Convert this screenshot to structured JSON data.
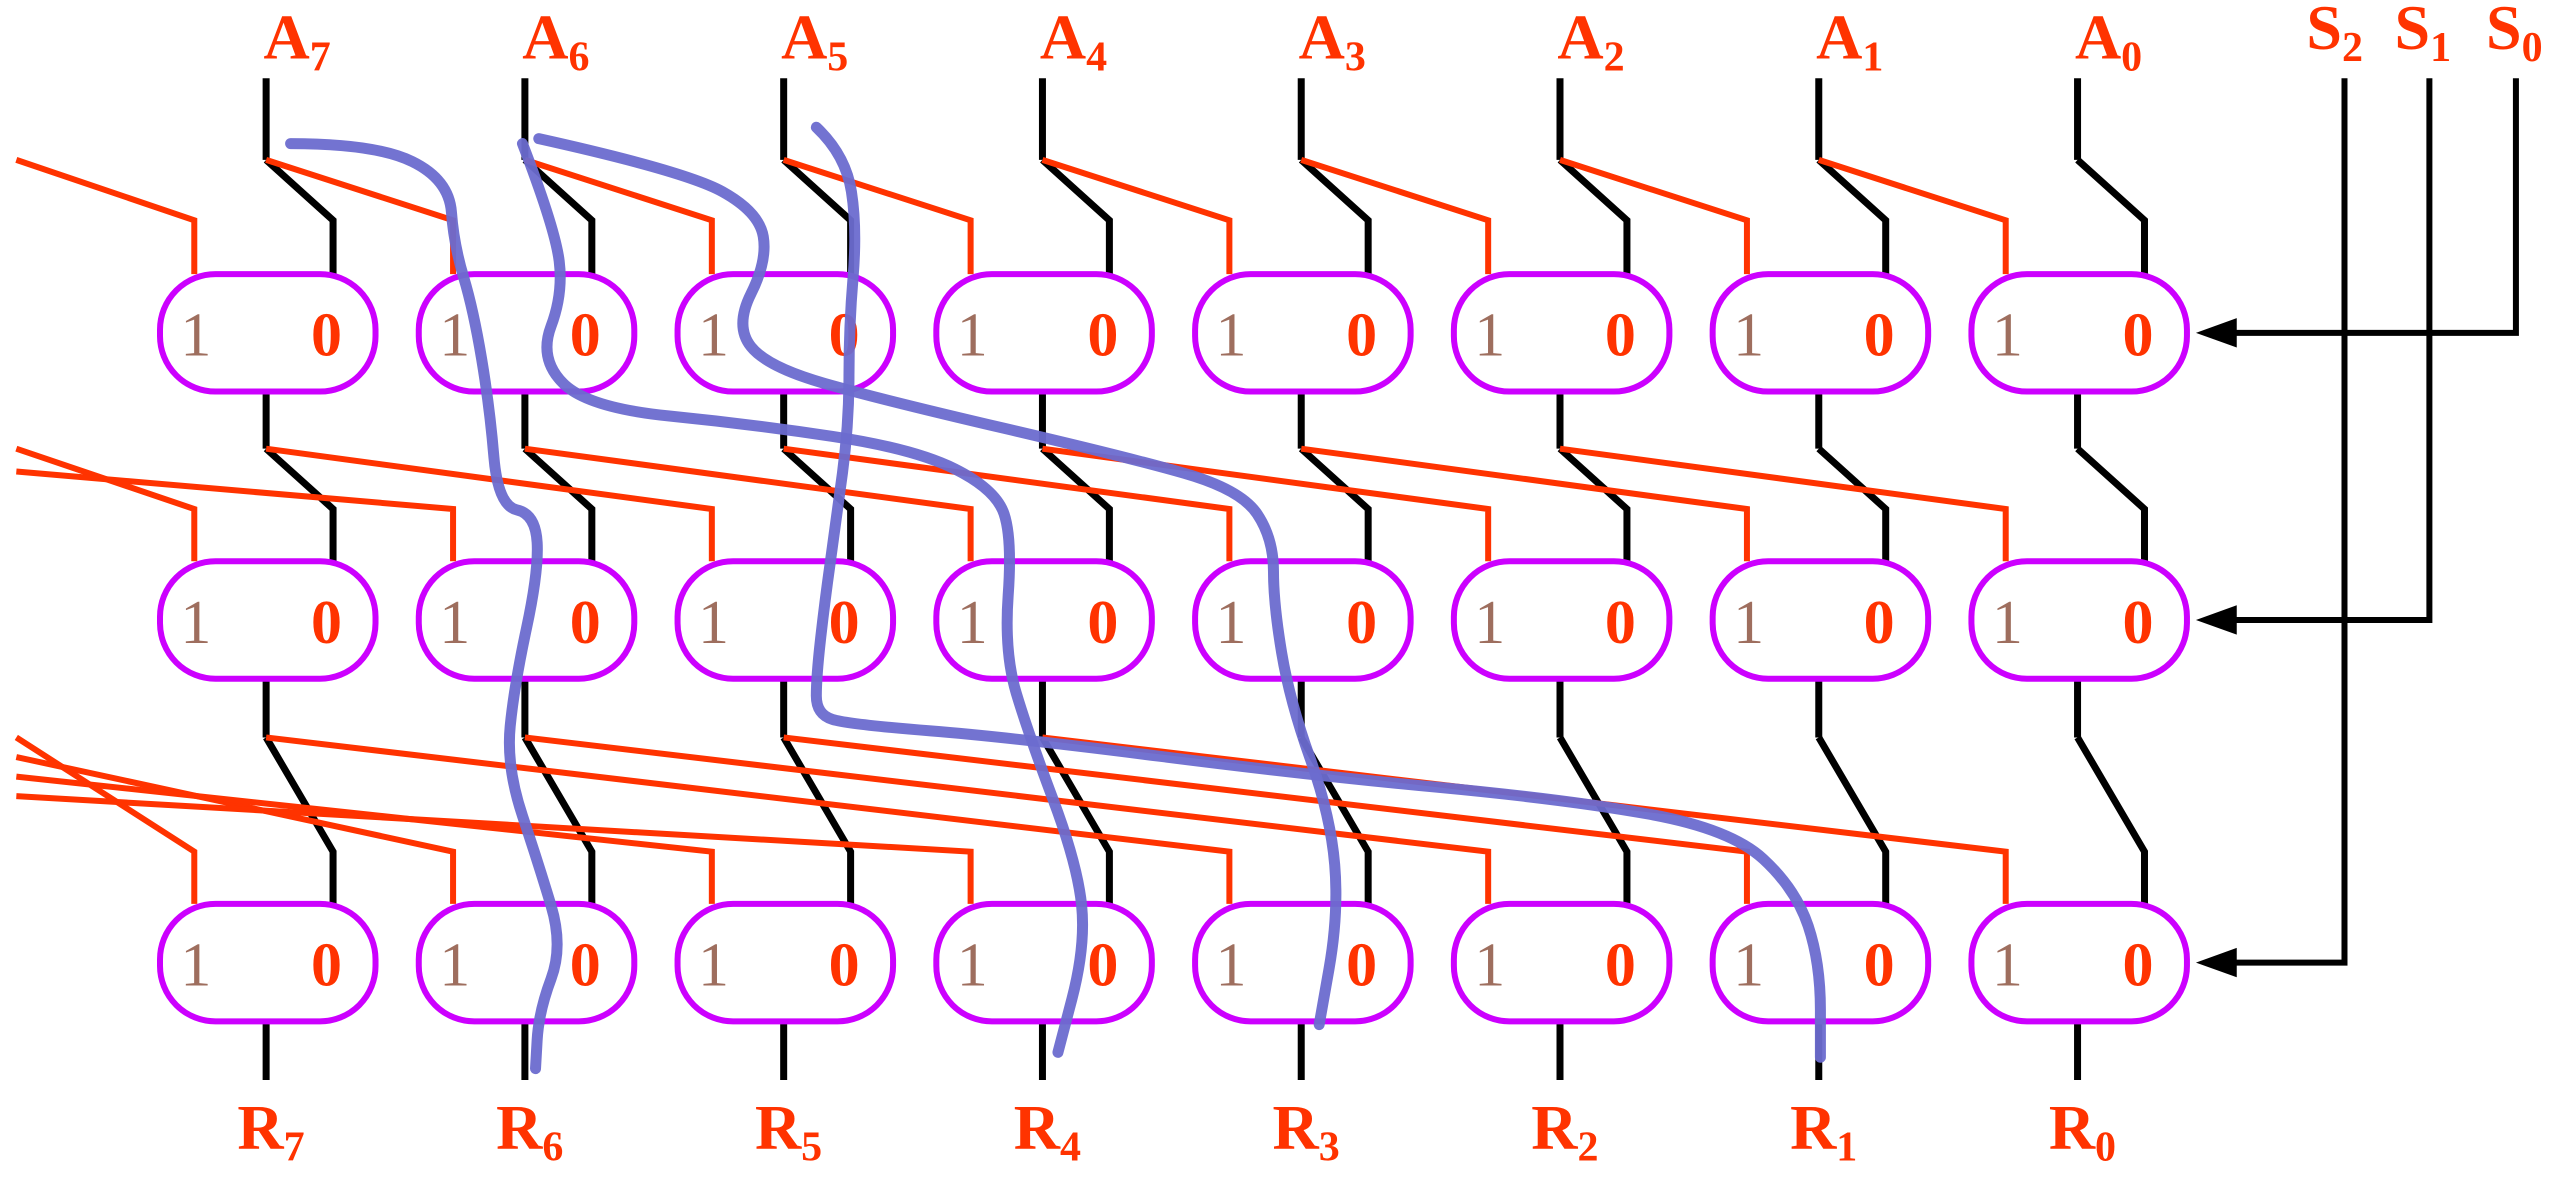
{
  "diagram": {
    "inputs": [
      {
        "base": "A",
        "sub": "7"
      },
      {
        "base": "A",
        "sub": "6"
      },
      {
        "base": "A",
        "sub": "5"
      },
      {
        "base": "A",
        "sub": "4"
      },
      {
        "base": "A",
        "sub": "3"
      },
      {
        "base": "A",
        "sub": "2"
      },
      {
        "base": "A",
        "sub": "1"
      },
      {
        "base": "A",
        "sub": "0"
      }
    ],
    "outputs": [
      {
        "base": "R",
        "sub": "7"
      },
      {
        "base": "R",
        "sub": "6"
      },
      {
        "base": "R",
        "sub": "5"
      },
      {
        "base": "R",
        "sub": "4"
      },
      {
        "base": "R",
        "sub": "3"
      },
      {
        "base": "R",
        "sub": "2"
      },
      {
        "base": "R",
        "sub": "1"
      },
      {
        "base": "R",
        "sub": "0"
      }
    ],
    "selects": [
      {
        "base": "S",
        "sub": "2"
      },
      {
        "base": "S",
        "sub": "1"
      },
      {
        "base": "S",
        "sub": "0"
      }
    ],
    "mux_labels": {
      "one": "1",
      "zero": "0"
    },
    "stages": [
      {
        "select": "S0",
        "shift": 1
      },
      {
        "select": "S1",
        "shift": 2
      },
      {
        "select": "S2",
        "shift": 4
      }
    ],
    "colors": {
      "mux_outline": "#cc00ff",
      "shift_wire": "#ff3300",
      "straight_wire": "#000000",
      "highlight_path": "#6b6bcf",
      "label": "#ff3300",
      "mux_one_text": "#9e6e5e"
    }
  }
}
